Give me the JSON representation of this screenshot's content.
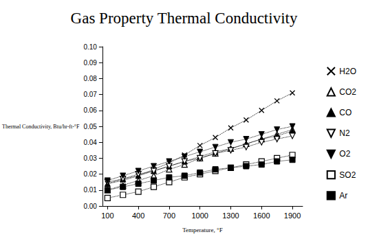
{
  "chart_data": {
    "type": "line",
    "title": "Gas Property Thermal Conductivity",
    "x_label": "Temperature, °F",
    "y_label": "Thermal Conductivity, Btu/hr-ft-°F",
    "x": [
      100,
      250,
      400,
      550,
      700,
      850,
      1000,
      1150,
      1300,
      1450,
      1600,
      1750,
      1900
    ],
    "series": [
      {
        "name": "H2O",
        "color": "#000000",
        "marker": "x",
        "line_style": "dotted",
        "values": [
          0.014,
          0.016,
          0.019,
          0.023,
          0.027,
          0.032,
          0.038,
          0.043,
          0.049,
          0.054,
          0.06,
          0.066,
          0.071
        ]
      },
      {
        "name": "CO2",
        "color": "#000000",
        "marker": "triangle-open",
        "line_style": "dotted",
        "values": [
          0.01,
          0.013,
          0.016,
          0.019,
          0.023,
          0.026,
          0.03,
          0.033,
          0.036,
          0.039,
          0.042,
          0.045,
          0.048
        ]
      },
      {
        "name": "CO",
        "color": "#000000",
        "marker": "triangle",
        "line_style": "dotted",
        "values": [
          0.014,
          0.017,
          0.019,
          0.022,
          0.025,
          0.028,
          0.031,
          0.034,
          0.036,
          0.039,
          0.042,
          0.044,
          0.047
        ]
      },
      {
        "name": "N2",
        "color": "#000000",
        "marker": "triangle-down-open",
        "line_style": "dotted",
        "values": [
          0.015,
          0.017,
          0.02,
          0.022,
          0.025,
          0.028,
          0.03,
          0.033,
          0.035,
          0.037,
          0.04,
          0.042,
          0.044
        ]
      },
      {
        "name": "O2",
        "color": "#000000",
        "marker": "triangle-down",
        "line_style": "dotted",
        "values": [
          0.016,
          0.019,
          0.022,
          0.025,
          0.028,
          0.031,
          0.034,
          0.037,
          0.04,
          0.042,
          0.045,
          0.048,
          0.05
        ]
      },
      {
        "name": "SO2",
        "color": "#000000",
        "marker": "square-open",
        "line_style": "dotted",
        "values": [
          0.005,
          0.007,
          0.009,
          0.012,
          0.015,
          0.018,
          0.02,
          0.022,
          0.024,
          0.026,
          0.028,
          0.03,
          0.032
        ]
      },
      {
        "name": "Ar",
        "color": "#000000",
        "marker": "square",
        "line_style": "dotted",
        "values": [
          0.01,
          0.012,
          0.014,
          0.016,
          0.018,
          0.019,
          0.021,
          0.023,
          0.024,
          0.025,
          0.026,
          0.028,
          0.029
        ]
      }
    ],
    "xlim": [
      50,
      2000
    ],
    "xticks": [
      100,
      400,
      700,
      1000,
      1300,
      1600,
      1900
    ],
    "ylim": [
      0,
      0.1
    ],
    "yticks": [
      {
        "value": 0,
        "label": "0.00"
      },
      {
        "value": 0.01,
        "label": "0.01"
      },
      {
        "value": 0.02,
        "label": "0.02"
      },
      {
        "value": 0.03,
        "label": "0.03"
      },
      {
        "value": 0.04,
        "label": "0.04"
      },
      {
        "value": 0.05,
        "label": "0.05"
      },
      {
        "value": 0.06,
        "label": "0.06"
      },
      {
        "value": 0.07,
        "label": "0.07"
      },
      {
        "value": 0.08,
        "label": "0.08"
      },
      {
        "value": 0.09,
        "label": "0.09"
      },
      {
        "value": 0.1,
        "label": "0.10"
      }
    ],
    "grid": false,
    "legend": "right"
  }
}
